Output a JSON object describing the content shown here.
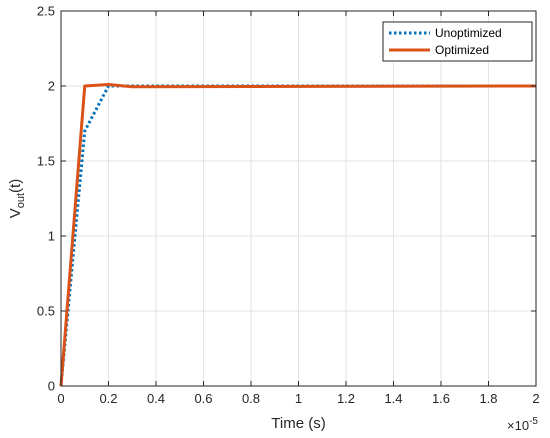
{
  "chart_data": {
    "type": "line",
    "xlabel": "Time (s)",
    "ylabel_base": "V",
    "ylabel_sub": "out",
    "ylabel_suffix": "(t)",
    "x_exponent_base": "×10",
    "x_exponent_power": "-5",
    "xlim": [
      0,
      2
    ],
    "ylim": [
      0,
      2.5
    ],
    "xticks": [
      0,
      0.2,
      0.4,
      0.6,
      0.8,
      1,
      1.2,
      1.4,
      1.6,
      1.8,
      2
    ],
    "xtick_labels": [
      "0",
      "0.2",
      "0.4",
      "0.6",
      "0.8",
      "1",
      "1.2",
      "1.4",
      "1.6",
      "1.8",
      "2"
    ],
    "yticks": [
      0,
      0.5,
      1,
      1.5,
      2,
      2.5
    ],
    "ytick_labels": [
      "0",
      "0.5",
      "1",
      "1.5",
      "2",
      "2.5"
    ],
    "grid": true,
    "legend_position": "top-right",
    "series": [
      {
        "name": "Unoptimized",
        "color": "#0072BD",
        "style": "dotted",
        "x": [
          0,
          0.1,
          0.2,
          0.3,
          2
        ],
        "y": [
          0,
          1.7,
          2.0,
          2.0,
          2.0
        ]
      },
      {
        "name": "Optimized",
        "color": "#D95319",
        "style": "solid",
        "x": [
          0,
          0.1,
          0.2,
          0.3,
          2
        ],
        "y": [
          0,
          2.0,
          2.01,
          1.995,
          2.0
        ]
      }
    ]
  }
}
